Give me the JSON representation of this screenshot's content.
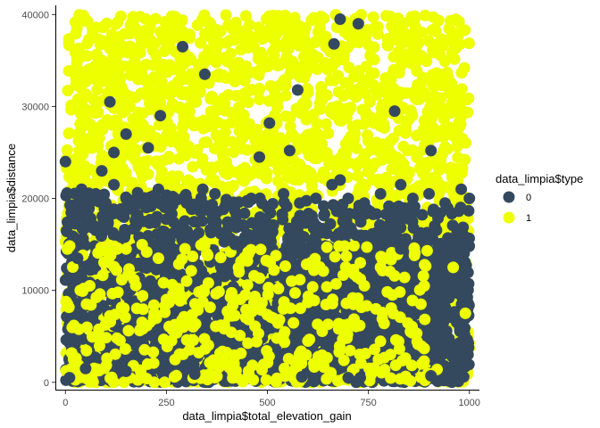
{
  "chart_data": {
    "type": "scatter",
    "title": "",
    "xlabel": "data_limpia$total_elevation_gain",
    "ylabel": "data_limpia$distance",
    "xlim": [
      -25,
      1025
    ],
    "ylim": [
      -800,
      41000
    ],
    "xticks": [
      0,
      250,
      500,
      750,
      1000
    ],
    "xtick_labels": [
      "0",
      "250",
      "500",
      "750",
      "1000"
    ],
    "yticks": [
      0,
      10000,
      20000,
      30000,
      40000
    ],
    "ytick_labels": [
      "0",
      "10000",
      "20000",
      "30000",
      "40000"
    ],
    "grid": false,
    "legend": {
      "title": "data_limpia$type",
      "position": "right",
      "entries": [
        {
          "label": "0",
          "color": "#34495e"
        },
        {
          "label": "1",
          "color": "#eeff00"
        }
      ]
    },
    "series": [
      {
        "name": "0",
        "color": "#34495e",
        "points": [
          [
            0,
            24000
          ],
          [
            40,
            21000
          ],
          [
            50,
            19000
          ],
          [
            75,
            20500
          ],
          [
            100,
            19500
          ],
          [
            120,
            21500
          ],
          [
            150,
            20000
          ],
          [
            200,
            19000
          ],
          [
            230,
            21000
          ],
          [
            260,
            20000
          ],
          [
            300,
            19500
          ],
          [
            340,
            21000
          ],
          [
            370,
            20500
          ],
          [
            420,
            19500
          ],
          [
            460,
            20000
          ],
          [
            500,
            19000
          ],
          [
            540,
            20500
          ],
          [
            580,
            19500
          ],
          [
            620,
            20000
          ],
          [
            660,
            21500
          ],
          [
            700,
            20000
          ],
          [
            740,
            19500
          ],
          [
            780,
            20500
          ],
          [
            820,
            19000
          ],
          [
            860,
            20000
          ],
          [
            900,
            20500
          ],
          [
            940,
            19500
          ],
          [
            980,
            21000
          ],
          [
            1000,
            20000
          ],
          [
            290,
            36500
          ],
          [
            345,
            33500
          ],
          [
            665,
            36800
          ],
          [
            680,
            39500
          ],
          [
            725,
            39000
          ],
          [
            575,
            31800
          ],
          [
            505,
            28200
          ],
          [
            555,
            25200
          ],
          [
            905,
            25200
          ],
          [
            120,
            25000
          ],
          [
            815,
            29500
          ],
          [
            235,
            29000
          ],
          [
            205,
            25500
          ],
          [
            110,
            30500
          ],
          [
            150,
            27000
          ],
          [
            480,
            24500
          ],
          [
            90,
            23000
          ],
          [
            680,
            22000
          ],
          [
            830,
            21500
          ],
          [
            440,
            17000
          ],
          [
            720,
            16000
          ],
          [
            610,
            18000
          ],
          [
            30,
            13500
          ],
          [
            830,
            14500
          ],
          [
            910,
            15500
          ],
          [
            420,
            15000
          ],
          [
            700,
            500
          ],
          [
            730,
            500
          ],
          [
            585,
            600
          ],
          [
            905,
            700
          ],
          [
            320,
            900
          ],
          [
            50,
            1500
          ],
          [
            150,
            1200
          ],
          [
            10,
            500
          ]
        ]
      },
      {
        "name": "1",
        "color": "#eeff00",
        "points": [
          [
            450,
            500
          ],
          [
            370,
            500
          ],
          [
            270,
            600
          ],
          [
            160,
            500
          ],
          [
            920,
            1400
          ],
          [
            565,
            700
          ],
          [
            20,
            2500
          ],
          [
            5,
            8500
          ],
          [
            250,
            9000
          ],
          [
            560,
            11000
          ],
          [
            740,
            10500
          ],
          [
            810,
            9500
          ],
          [
            880,
            8500
          ],
          [
            990,
            7500
          ],
          [
            60,
            10500
          ],
          [
            300,
            11000
          ],
          [
            130,
            9800
          ],
          [
            960,
            12500
          ],
          [
            230,
            13500
          ],
          [
            730,
            13000
          ],
          [
            430,
            12000
          ],
          [
            150,
            14500
          ],
          [
            780,
            12500
          ],
          [
            350,
            14000
          ]
        ]
      }
    ]
  }
}
